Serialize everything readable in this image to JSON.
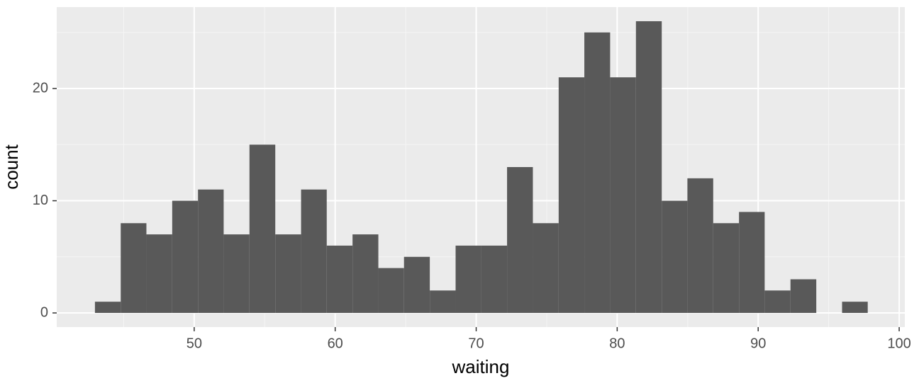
{
  "chart_data": {
    "type": "histogram",
    "x_label": "waiting",
    "y_label": "count",
    "bins": [
      42.96,
      44.79,
      46.61,
      48.44,
      50.27,
      52.09,
      53.92,
      55.75,
      57.58,
      59.4,
      61.23,
      63.06,
      64.88,
      66.71,
      68.54,
      70.37,
      72.19,
      74.02,
      75.85,
      77.67,
      79.5,
      81.33,
      83.16,
      84.98,
      86.81,
      88.64,
      90.46,
      92.29,
      94.12,
      95.95,
      97.77
    ],
    "values": [
      1,
      8,
      7,
      10,
      11,
      7,
      15,
      7,
      11,
      6,
      7,
      4,
      5,
      2,
      6,
      6,
      13,
      8,
      21,
      25,
      21,
      26,
      10,
      12,
      8,
      9,
      2,
      3,
      0,
      1
    ],
    "color": "#595959",
    "xlim": [
      40.25,
      100.4
    ],
    "xticks": [
      50,
      60,
      70,
      80,
      90,
      100
    ],
    "ylim": [
      -1.26,
      27.26
    ],
    "yticks": [
      0,
      10,
      20
    ],
    "grid": true
  }
}
